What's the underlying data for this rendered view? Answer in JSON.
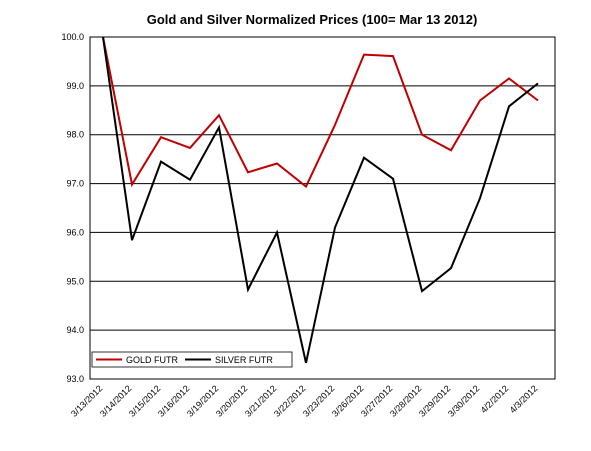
{
  "chart_data": {
    "type": "line",
    "title": "Gold and Silver Normalized Prices  (100= Mar 13 2012)",
    "xlabel": "",
    "ylabel": "",
    "categories": [
      "3/13/2012",
      "3/14/2012",
      "3/15/2012",
      "3/16/2012",
      "3/19/2012",
      "3/20/2012",
      "3/21/2012",
      "3/22/2012",
      "3/23/2012",
      "3/26/2012",
      "3/27/2012",
      "3/28/2012",
      "3/29/2012",
      "3/30/2012",
      "4/2/2012",
      "4/3/2012"
    ],
    "ylim": [
      93.0,
      100.0
    ],
    "yticks": [
      "93.0",
      "94.0",
      "95.0",
      "96.0",
      "97.0",
      "98.0",
      "99.0",
      "100.0"
    ],
    "grid": "horizontal",
    "legend_position": "bottom-left",
    "series": [
      {
        "name": "GOLD  FUTR",
        "color": "#c00000",
        "values": [
          100.0,
          96.98,
          97.95,
          97.73,
          98.4,
          97.23,
          97.41,
          96.94,
          98.2,
          99.64,
          99.61,
          98.0,
          97.68,
          98.7,
          99.15,
          98.7
        ]
      },
      {
        "name": "SILVER  FUTR",
        "color": "#000000",
        "values": [
          100.0,
          95.84,
          97.45,
          97.08,
          98.15,
          94.83,
          96.0,
          93.33,
          96.1,
          97.53,
          97.1,
          94.8,
          95.27,
          96.7,
          98.58,
          99.05
        ]
      }
    ]
  }
}
